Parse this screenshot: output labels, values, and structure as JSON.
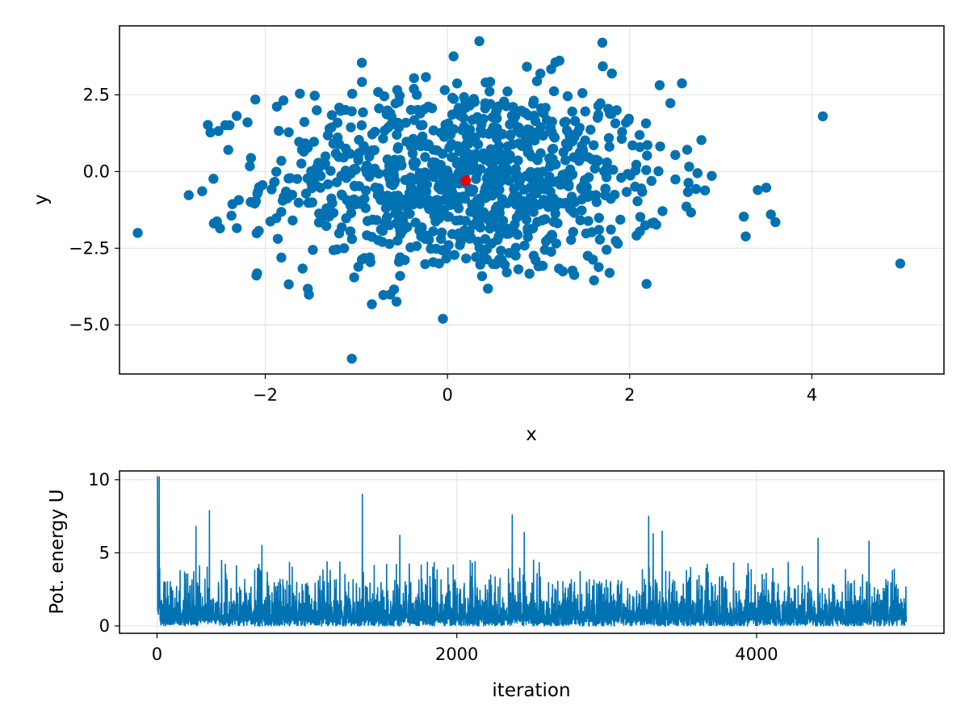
{
  "chart_data": [
    {
      "type": "scatter",
      "xlabel": "x",
      "ylabel": "y",
      "xlim": [
        -3.6,
        5.45
      ],
      "ylim": [
        -6.6,
        4.75
      ],
      "xticks": [
        -2,
        0,
        2,
        4
      ],
      "yticks": [
        2.5,
        0.0,
        -2.5,
        -5.0
      ],
      "xtick_labels": [
        "−2",
        "0",
        "2",
        "4"
      ],
      "ytick_labels": [
        "2.5",
        "0.0",
        "−2.5",
        "−5.0"
      ],
      "grid": true,
      "colors": {
        "points": "#0072b2",
        "highlight": "#e8000b",
        "axes": "#000000",
        "grid": "#e5e5e5"
      },
      "series": [
        {
          "values_note": "approx. 1000 samples, roughly bivariate normal centered near (0.2, -0.3)",
          "center": [
            0.2,
            -0.3
          ],
          "std": [
            1.1,
            1.6
          ],
          "n": 1000,
          "outliers": [
            [
              -3.4,
              -2.0
            ],
            [
              4.97,
              -3.0
            ],
            [
              -1.05,
              -6.1
            ],
            [
              -0.05,
              -4.8
            ],
            [
              0.35,
              4.25
            ],
            [
              1.7,
              4.2
            ],
            [
              4.12,
              1.8
            ],
            [
              3.55,
              -1.4
            ],
            [
              3.6,
              -1.65
            ]
          ]
        },
        {
          "role": "highlight",
          "x": [
            0.2
          ],
          "y": [
            -0.3
          ]
        }
      ]
    },
    {
      "type": "line",
      "xlabel": "iteration",
      "ylabel": "Pot. energy U",
      "xlim": [
        -250,
        5250
      ],
      "ylim": [
        -0.5,
        10.6
      ],
      "xticks": [
        0,
        2000,
        4000
      ],
      "yticks": [
        0,
        5,
        10
      ],
      "xtick_labels": [
        "0",
        "2000",
        "4000"
      ],
      "ytick_labels": [
        "0",
        "5",
        "10"
      ],
      "grid": true,
      "colors": {
        "line": "#0072b2"
      },
      "series": [
        {
          "n": 5000,
          "start_value": 10.2,
          "typical_range": [
            0,
            2
          ],
          "peaks": [
            [
              0,
              10.2
            ],
            [
              15,
              10.2
            ],
            [
              260,
              6.8
            ],
            [
              350,
              7.9
            ],
            [
              700,
              5.5
            ],
            [
              1370,
              9.0
            ],
            [
              1620,
              6.2
            ],
            [
              2370,
              7.6
            ],
            [
              2450,
              6.4
            ],
            [
              3280,
              7.5
            ],
            [
              3310,
              6.3
            ],
            [
              3370,
              6.5
            ],
            [
              4410,
              6.0
            ],
            [
              4750,
              5.8
            ]
          ]
        }
      ]
    }
  ]
}
